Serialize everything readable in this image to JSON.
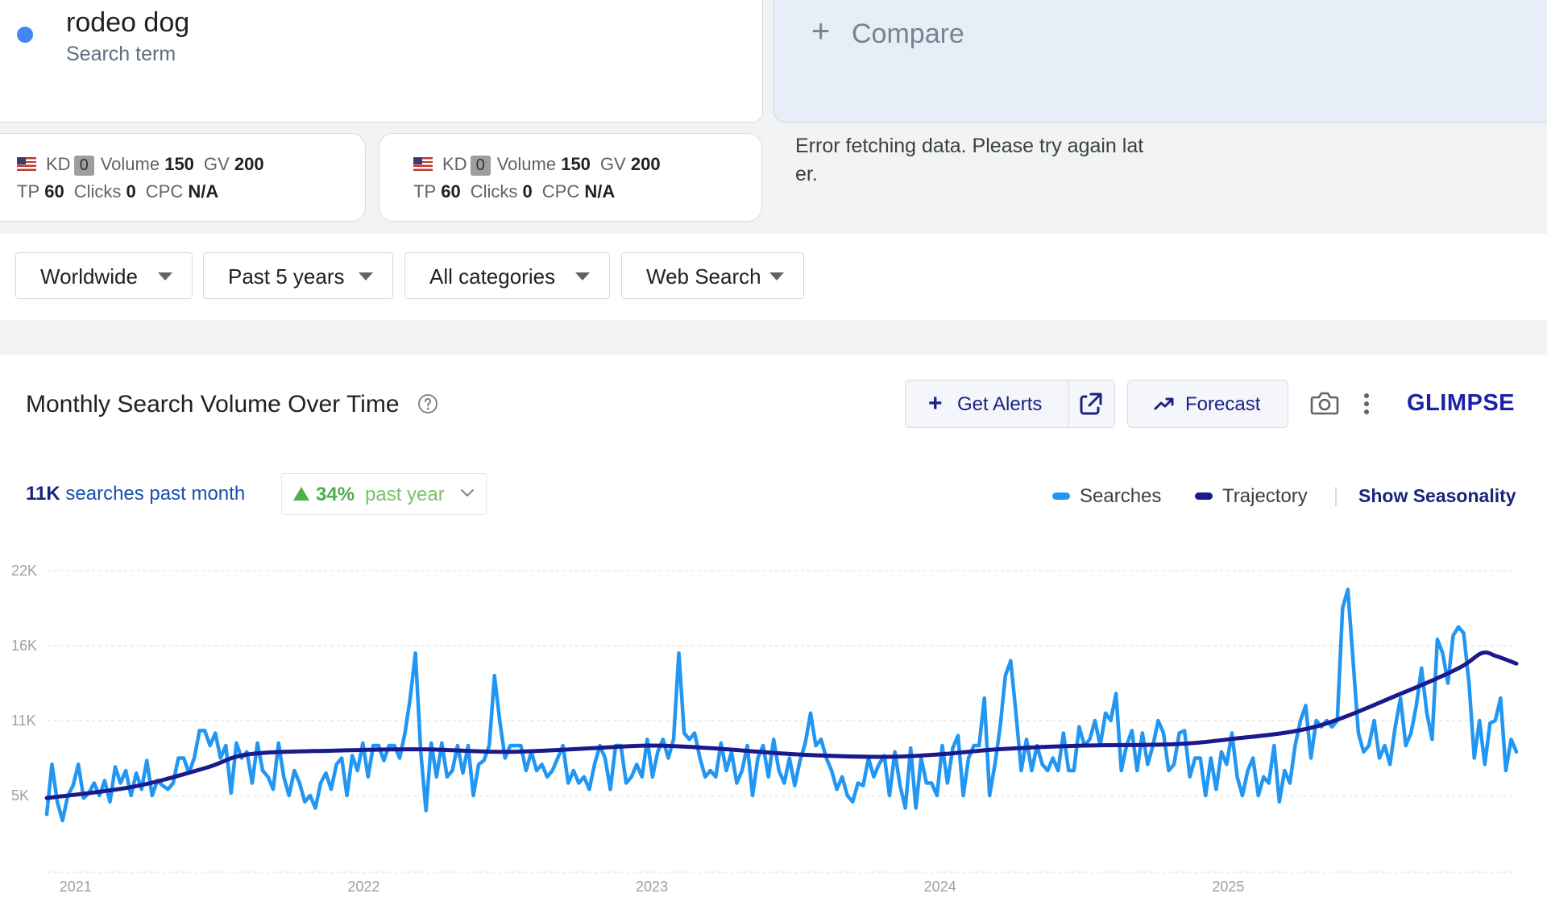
{
  "term": {
    "title": "rodeo dog",
    "subtitle": "Search term",
    "dot_color": "#4285f4"
  },
  "compare": {
    "plus": "+",
    "label": "Compare"
  },
  "metrics": [
    {
      "kd_label": "KD",
      "kd_value": "0",
      "volume_label": "Volume",
      "volume_value": "150",
      "gv_label": "GV",
      "gv_value": "200",
      "tp_label": "TP",
      "tp_value": "60",
      "clicks_label": "Clicks",
      "clicks_value": "0",
      "cpc_label": "CPC",
      "cpc_value": "N/A"
    },
    {
      "kd_label": "KD",
      "kd_value": "0",
      "volume_label": "Volume",
      "volume_value": "150",
      "gv_label": "GV",
      "gv_value": "200",
      "tp_label": "TP",
      "tp_value": "60",
      "clicks_label": "Clicks",
      "clicks_value": "0",
      "cpc_label": "CPC",
      "cpc_value": "N/A"
    }
  ],
  "error_message": "Error fetching data. Please try again later.",
  "filters": {
    "region": "Worldwide",
    "time_range": "Past 5 years",
    "category": "All categories",
    "source": "Web Search"
  },
  "chart_header": {
    "title": "Monthly Search Volume Over Time",
    "alerts_label": "Get Alerts",
    "forecast_label": "Forecast",
    "brand": "GLIMPSE"
  },
  "stats": {
    "searches_value": "11K",
    "searches_text": "searches past month",
    "yoy_value": "34%",
    "yoy_text": "past year"
  },
  "legend": {
    "searches": "Searches",
    "trajectory": "Trajectory",
    "seasonality": "Show Seasonality"
  },
  "colors": {
    "searches": "#2196f3",
    "trajectory": "#1a1a8c",
    "positive": "#4caf50",
    "link": "#1a237e"
  },
  "chart_data": {
    "type": "line",
    "y_ticks": [
      "5K",
      "11K",
      "16K",
      "22K"
    ],
    "y_tick_values": [
      5000,
      11000,
      16000,
      22000
    ],
    "x_tick_labels": [
      "2021",
      "2022",
      "2023",
      "2024",
      "2025"
    ],
    "x_tick_values": [
      2021.0,
      2022.0,
      2023.0,
      2024.0,
      2025.0
    ],
    "x_range": [
      2020.9,
      2026.0
    ],
    "y_range": [
      0,
      22000
    ],
    "grid": true,
    "series": [
      {
        "name": "Searches",
        "x_start": 2020.9,
        "x_end": 2026.0,
        "values": [
          3500,
          7500,
          4500,
          3000,
          5000,
          5800,
          7500,
          4800,
          5200,
          6000,
          5000,
          6200,
          4500,
          7300,
          6000,
          7000,
          5000,
          6800,
          5500,
          7800,
          5000,
          6200,
          5800,
          5500,
          6000,
          8000,
          8000,
          6800,
          8000,
          10200,
          10200,
          9000,
          10000,
          8000,
          9000,
          5200,
          9200,
          8000,
          8500,
          6000,
          9200,
          7000,
          6500,
          5500,
          9200,
          6500,
          5000,
          7000,
          6000,
          4500,
          5000,
          4000,
          6000,
          6800,
          5500,
          7500,
          8000,
          5000,
          8200,
          7000,
          9200,
          6500,
          9000,
          9000,
          7800,
          9000,
          9000,
          8000,
          10000,
          12500,
          15500,
          8500,
          3800,
          9200,
          6500,
          9200,
          6500,
          7000,
          9000,
          6800,
          9000,
          5000,
          7500,
          7800,
          9000,
          14000,
          11000,
          8000,
          9000,
          9000,
          9000,
          7000,
          8500,
          7000,
          7500,
          6500,
          7000,
          8000,
          9000,
          6000,
          7000,
          6000,
          6500,
          5500,
          7500,
          9000,
          8000,
          5500,
          9000,
          9000,
          6000,
          6500,
          7500,
          6500,
          9500,
          6500,
          8500,
          9500,
          8000,
          9500,
          15500,
          10000,
          9500,
          10000,
          8000,
          6500,
          7000,
          6500,
          9200,
          7000,
          8500,
          6000,
          7000,
          9000,
          5000,
          8000,
          9000,
          6500,
          9500,
          7000,
          6000,
          8000,
          5800,
          7800,
          9200,
          11500,
          9000,
          9500,
          8000,
          7000,
          5500,
          6500,
          5000,
          4500,
          6000,
          5800,
          8000,
          6500,
          7500,
          8200,
          5000,
          8500,
          5800,
          4000,
          8800,
          4000,
          8000,
          6000,
          6000,
          5000,
          9000,
          6000,
          8800,
          9800,
          5000,
          8000,
          9000,
          9000,
          12500,
          5000,
          7500,
          10500,
          14000,
          15000,
          11500,
          7000,
          9500,
          7000,
          9000,
          7500,
          7000,
          8000,
          7000,
          10000,
          7000,
          7000,
          10500,
          9000,
          9500,
          11000,
          9000,
          11500,
          11000,
          12800,
          7000,
          9000,
          10200,
          7000,
          10000,
          7500,
          9000,
          11000,
          10000,
          7000,
          7500,
          10000,
          10200,
          6500,
          8000,
          8000,
          5000,
          8000,
          5500,
          8500,
          7500,
          10000,
          6500,
          5000,
          7000,
          8000,
          5000,
          6500,
          6000,
          9000,
          4500,
          7000,
          6000,
          9000,
          11000,
          12000,
          8000,
          11000,
          10500,
          11000,
          10500,
          11000,
          19000,
          20500,
          15000,
          10000,
          8500,
          9000,
          11000,
          8000,
          9000,
          7500,
          10500,
          12500,
          9000,
          10000,
          12000,
          14500,
          11500,
          9500,
          16500,
          15500,
          13500,
          16800,
          17500,
          17000,
          13500,
          8000,
          11000,
          7500,
          10800,
          11000,
          12500,
          7000,
          9500,
          8500
        ]
      },
      {
        "name": "Trajectory",
        "points": [
          [
            2020.9,
            4800
          ],
          [
            2021.2,
            5700
          ],
          [
            2021.45,
            7200
          ],
          [
            2021.6,
            8300
          ],
          [
            2021.9,
            8600
          ],
          [
            2022.2,
            8700
          ],
          [
            2022.5,
            8500
          ],
          [
            2022.8,
            8800
          ],
          [
            2023.0,
            9000
          ],
          [
            2023.2,
            8800
          ],
          [
            2023.5,
            8300
          ],
          [
            2023.8,
            8100
          ],
          [
            2024.0,
            8300
          ],
          [
            2024.2,
            8700
          ],
          [
            2024.5,
            9000
          ],
          [
            2024.8,
            9100
          ],
          [
            2025.0,
            9500
          ],
          [
            2025.3,
            10500
          ],
          [
            2025.6,
            12800
          ],
          [
            2025.8,
            14500
          ],
          [
            2025.88,
            15500
          ],
          [
            2025.93,
            15300
          ],
          [
            2026.0,
            14800
          ]
        ]
      }
    ]
  }
}
